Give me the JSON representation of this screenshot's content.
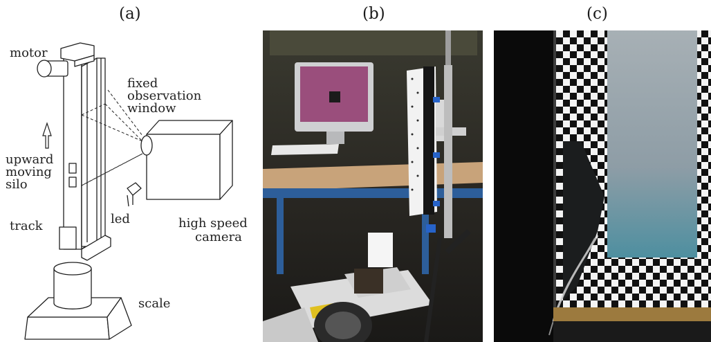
{
  "panels": {
    "a": {
      "label": "(a)"
    },
    "b": {
      "label": "(b)"
    },
    "c": {
      "label": "(c)"
    }
  },
  "diagram": {
    "motor": "motor",
    "fixed_window": [
      "fixed",
      "observation",
      "window"
    ],
    "upward_silo": [
      "upward",
      "moving",
      "silo"
    ],
    "track": "track",
    "led": "led",
    "camera": [
      "high speed",
      "camera"
    ],
    "scale": "scale"
  },
  "colors": {
    "line": "#1f1f1f",
    "photo_bg": "#2b2a27",
    "checker_dark": "#111111",
    "checker_light": "#f4f4f4",
    "sand": "#8a9ba6"
  }
}
